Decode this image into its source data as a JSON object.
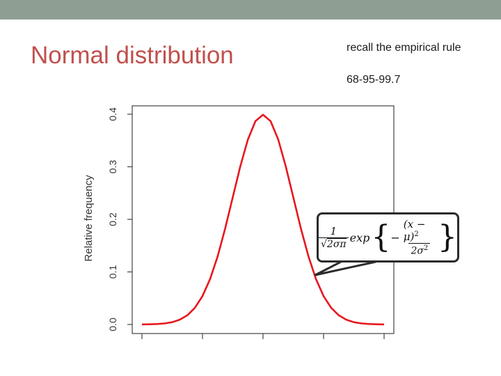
{
  "slide": {
    "title": "Normal distribution",
    "notes": [
      "recall the empirical rule",
      "68-95-99.7"
    ]
  },
  "formula": {
    "numerator": "1",
    "sqrt_symbol": "√",
    "sqrt_body": "2σπ",
    "function_name": "exp",
    "left_brace": "{",
    "minus": "−",
    "inner_numerator": "(x − μ)",
    "inner_numerator_power": "2",
    "inner_denominator": "2σ",
    "inner_denominator_power": "2",
    "right_brace": "}"
  },
  "colors": {
    "title": "#c0504d",
    "top_bar": "#8e9e93",
    "curve": "#e8171d",
    "axis": "#444444"
  },
  "chart_data": {
    "type": "line",
    "title": "",
    "xlabel": "",
    "ylabel": "Relative frequency",
    "series": [
      {
        "x": [
          -4,
          -3.75,
          -3.5,
          -3.25,
          -3,
          -2.75,
          -2.5,
          -2.25,
          -2,
          -1.75,
          -1.5,
          -1.25,
          -1,
          -0.75,
          -0.5,
          -0.25,
          0,
          0.25,
          0.5,
          0.75,
          1,
          1.25,
          1.5,
          1.75,
          2,
          2.25,
          2.5,
          2.75,
          3,
          3.25,
          3.5,
          3.75,
          4
        ],
        "values": [
          0.0001,
          0.0004,
          0.0009,
          0.002,
          0.0044,
          0.0091,
          0.0175,
          0.0317,
          0.054,
          0.0863,
          0.1295,
          0.1826,
          0.242,
          0.3011,
          0.3521,
          0.3867,
          0.3989,
          0.3867,
          0.3521,
          0.3011,
          0.242,
          0.1826,
          0.1295,
          0.0863,
          0.054,
          0.0317,
          0.0175,
          0.0091,
          0.0044,
          0.002,
          0.0009,
          0.0004,
          0.0001
        ]
      }
    ],
    "xlim": [
      -4,
      4
    ],
    "ylim": [
      0,
      0.4
    ],
    "x_ticks": [
      -4,
      -2,
      0,
      2,
      4
    ],
    "y_ticks": [
      0,
      0.1,
      0.2,
      0.3,
      0.4
    ],
    "y_tick_labels": [
      "0.0",
      "0.1",
      "0.2",
      "0.3",
      "0.4"
    ],
    "grid": false,
    "legend": "none"
  }
}
